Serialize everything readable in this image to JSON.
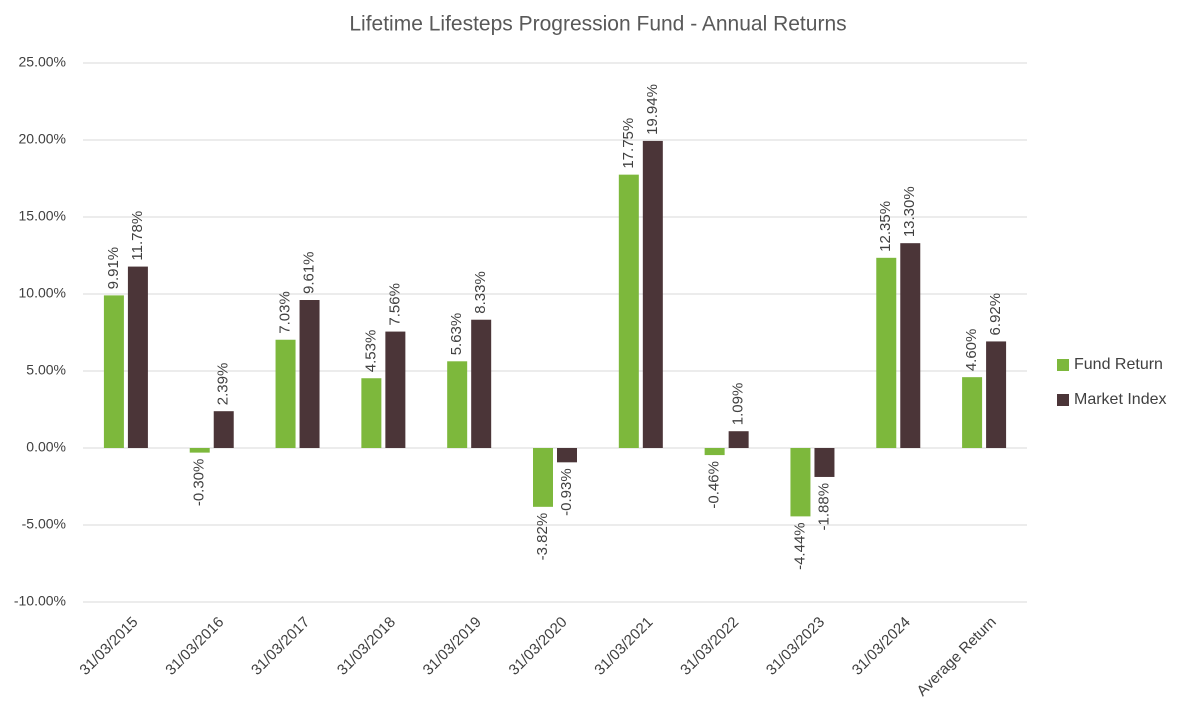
{
  "chart_data": {
    "type": "bar",
    "title": "Lifetime Lifesteps Progression Fund - Annual Returns",
    "categories": [
      "31/03/2015",
      "31/03/2016",
      "31/03/2017",
      "31/03/2018",
      "31/03/2019",
      "31/03/2020",
      "31/03/2021",
      "31/03/2022",
      "31/03/2023",
      "31/03/2024",
      "Average Return"
    ],
    "series": [
      {
        "name": "Fund Return",
        "color": "#7db83c",
        "values": [
          9.91,
          -0.3,
          7.03,
          4.53,
          5.63,
          -3.82,
          17.75,
          -0.46,
          -4.44,
          12.35,
          4.6
        ],
        "value_labels": [
          "9.91%",
          "-0.30%",
          "7.03%",
          "4.53%",
          "5.63%",
          "-3.82%",
          "17.75%",
          "-0.46%",
          "-4.44%",
          "12.35%",
          "4.60%"
        ]
      },
      {
        "name": "Market Index",
        "color": "#4b3538",
        "values": [
          11.78,
          2.39,
          9.61,
          7.56,
          8.33,
          -0.93,
          19.94,
          1.09,
          -1.88,
          13.3,
          6.92
        ],
        "value_labels": [
          "11.78%",
          "2.39%",
          "9.61%",
          "7.56%",
          "8.33%",
          "-0.93%",
          "19.94%",
          "1.09%",
          "-1.88%",
          "13.30%",
          "6.92%"
        ]
      }
    ],
    "ylim": [
      -10,
      25
    ],
    "yticks": [
      {
        "value": -10,
        "label": "-10.00%"
      },
      {
        "value": -5,
        "label": "-5.00%"
      },
      {
        "value": 0,
        "label": "0.00%"
      },
      {
        "value": 5,
        "label": "5.00%"
      },
      {
        "value": 10,
        "label": "10.00%"
      },
      {
        "value": 15,
        "label": "15.00%"
      },
      {
        "value": 20,
        "label": "20.00%"
      },
      {
        "value": 25,
        "label": "25.00%"
      }
    ],
    "grid": true,
    "legend": "right"
  }
}
